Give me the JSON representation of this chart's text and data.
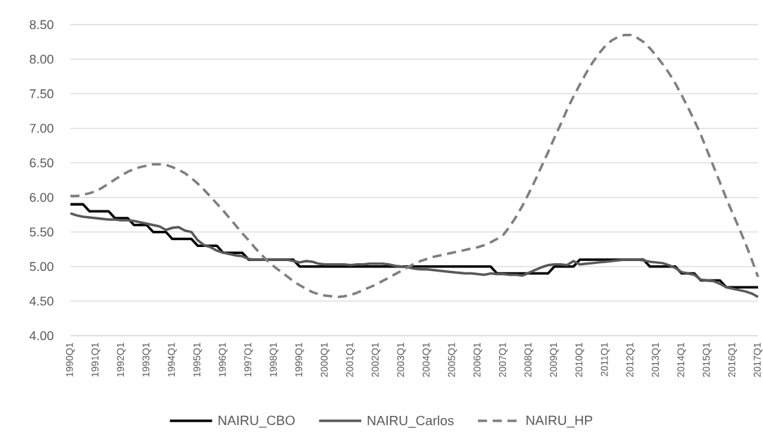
{
  "chart_data": {
    "type": "line",
    "categories": [
      "1990Q1",
      null,
      null,
      null,
      "1991Q1",
      null,
      null,
      null,
      "1992Q1",
      null,
      null,
      null,
      "1993Q1",
      null,
      null,
      null,
      "1994Q1",
      null,
      null,
      null,
      "1995Q1",
      null,
      null,
      null,
      "1996Q1",
      null,
      null,
      null,
      "1997Q1",
      null,
      null,
      null,
      "1998Q1",
      null,
      null,
      null,
      "1999Q1",
      null,
      null,
      null,
      "2000Q1",
      null,
      null,
      null,
      "2001Q1",
      null,
      null,
      null,
      "2002Q1",
      null,
      null,
      null,
      "2003Q1",
      null,
      null,
      null,
      "2004Q1",
      null,
      null,
      null,
      "2005Q1",
      null,
      null,
      null,
      "2006Q1",
      null,
      null,
      null,
      "2007Q1",
      null,
      null,
      null,
      "2008Q1",
      null,
      null,
      null,
      "2009Q1",
      null,
      null,
      null,
      "2010Q1",
      null,
      null,
      null,
      "2011Q1",
      null,
      null,
      null,
      "2012Q1",
      null,
      null,
      null,
      "2013Q1",
      null,
      null,
      null,
      "2014Q1",
      null,
      null,
      null,
      "2015Q1",
      null,
      null,
      null,
      "2016Q1",
      null,
      null,
      null,
      "2017Q1"
    ],
    "series": [
      {
        "name": "NAIRU_CBO",
        "color": "#000000",
        "line_style": "solid",
        "values": [
          5.9,
          5.9,
          5.9,
          5.8,
          5.8,
          5.8,
          5.8,
          5.7,
          5.7,
          5.7,
          5.6,
          5.6,
          5.6,
          5.5,
          5.5,
          5.5,
          5.4,
          5.4,
          5.4,
          5.4,
          5.3,
          5.3,
          5.3,
          5.3,
          5.2,
          5.2,
          5.2,
          5.2,
          5.1,
          5.1,
          5.1,
          5.1,
          5.1,
          5.1,
          5.1,
          5.1,
          5.0,
          5.0,
          5.0,
          5.0,
          5.0,
          5.0,
          5.0,
          5.0,
          5.0,
          5.0,
          5.0,
          5.0,
          5.0,
          5.0,
          5.0,
          5.0,
          5.0,
          5.0,
          5.0,
          5.0,
          5.0,
          5.0,
          5.0,
          5.0,
          5.0,
          5.0,
          5.0,
          5.0,
          5.0,
          5.0,
          5.0,
          4.9,
          4.9,
          4.9,
          4.9,
          4.9,
          4.9,
          4.9,
          4.9,
          4.9,
          5.0,
          5.0,
          5.0,
          5.0,
          5.1,
          5.1,
          5.1,
          5.1,
          5.1,
          5.1,
          5.1,
          5.1,
          5.1,
          5.1,
          5.1,
          5.0,
          5.0,
          5.0,
          5.0,
          5.0,
          4.9,
          4.9,
          4.9,
          4.8,
          4.8,
          4.8,
          4.8,
          4.7,
          4.7,
          4.7,
          4.7,
          4.7,
          4.7
        ]
      },
      {
        "name": "NAIRU_Carlos",
        "color": "#595959",
        "line_style": "solid",
        "values": [
          5.77,
          5.74,
          5.72,
          5.71,
          5.7,
          5.69,
          5.68,
          5.68,
          5.67,
          5.67,
          5.66,
          5.64,
          5.62,
          5.6,
          5.58,
          5.53,
          5.56,
          5.57,
          5.52,
          5.5,
          5.38,
          5.31,
          5.28,
          5.23,
          5.2,
          5.18,
          5.16,
          5.15,
          5.11,
          5.1,
          5.1,
          5.1,
          5.1,
          5.1,
          5.1,
          5.08,
          5.06,
          5.08,
          5.07,
          5.04,
          5.03,
          5.03,
          5.03,
          5.03,
          5.02,
          5.03,
          5.03,
          5.04,
          5.04,
          5.04,
          5.03,
          5.01,
          5.0,
          4.99,
          4.97,
          4.96,
          4.96,
          4.95,
          4.94,
          4.93,
          4.92,
          4.91,
          4.9,
          4.9,
          4.89,
          4.88,
          4.9,
          4.89,
          4.89,
          4.88,
          4.88,
          4.87,
          4.91,
          4.95,
          4.99,
          5.02,
          5.03,
          5.03,
          5.02,
          5.08,
          5.03,
          5.04,
          5.05,
          5.06,
          5.07,
          5.08,
          5.09,
          5.1,
          5.1,
          5.1,
          5.09,
          5.07,
          5.06,
          5.05,
          5.02,
          4.98,
          4.92,
          4.9,
          4.88,
          4.81,
          4.8,
          4.79,
          4.75,
          4.7,
          4.68,
          4.66,
          4.64,
          4.61,
          4.56
        ]
      },
      {
        "name": "NAIRU_HP",
        "color": "#7f7f7f",
        "line_style": "dashed",
        "values": [
          6.02,
          6.02,
          6.04,
          6.06,
          6.09,
          6.14,
          6.2,
          6.26,
          6.32,
          6.37,
          6.41,
          6.44,
          6.46,
          6.48,
          6.48,
          6.47,
          6.44,
          6.4,
          6.35,
          6.28,
          6.2,
          6.11,
          6.01,
          5.91,
          5.81,
          5.7,
          5.59,
          5.48,
          5.38,
          5.27,
          5.17,
          5.08,
          5.0,
          4.93,
          4.86,
          4.79,
          4.73,
          4.68,
          4.63,
          4.6,
          4.58,
          4.57,
          4.56,
          4.57,
          4.59,
          4.62,
          4.66,
          4.7,
          4.74,
          4.79,
          4.84,
          4.89,
          4.94,
          4.99,
          5.04,
          5.08,
          5.11,
          5.14,
          5.16,
          5.18,
          5.2,
          5.22,
          5.24,
          5.26,
          5.28,
          5.31,
          5.35,
          5.4,
          5.46,
          5.58,
          5.72,
          5.88,
          6.06,
          6.25,
          6.45,
          6.65,
          6.86,
          7.06,
          7.27,
          7.46,
          7.63,
          7.8,
          7.95,
          8.08,
          8.19,
          8.27,
          8.32,
          8.35,
          8.35,
          8.31,
          8.25,
          8.16,
          8.05,
          7.93,
          7.8,
          7.65,
          7.48,
          7.3,
          7.11,
          6.91,
          6.68,
          6.45,
          6.22,
          5.99,
          5.77,
          5.56,
          5.34,
          5.1,
          4.85
        ]
      }
    ],
    "ylim": [
      4,
      8.5
    ],
    "yticks": [
      {
        "value": 4,
        "label": "4.00"
      },
      {
        "value": 4.5,
        "label": "4.50"
      },
      {
        "value": 5,
        "label": "5.00"
      },
      {
        "value": 5.5,
        "label": "5.50"
      },
      {
        "value": 6,
        "label": "6.00"
      },
      {
        "value": 6.5,
        "label": "6.50"
      },
      {
        "value": 7,
        "label": "7.00"
      },
      {
        "value": 7.5,
        "label": "7.50"
      },
      {
        "value": 8,
        "label": "8.00"
      },
      {
        "value": 8.5,
        "label": "8.50"
      }
    ],
    "grid": "y",
    "legend": "bottom",
    "marker": "none"
  }
}
